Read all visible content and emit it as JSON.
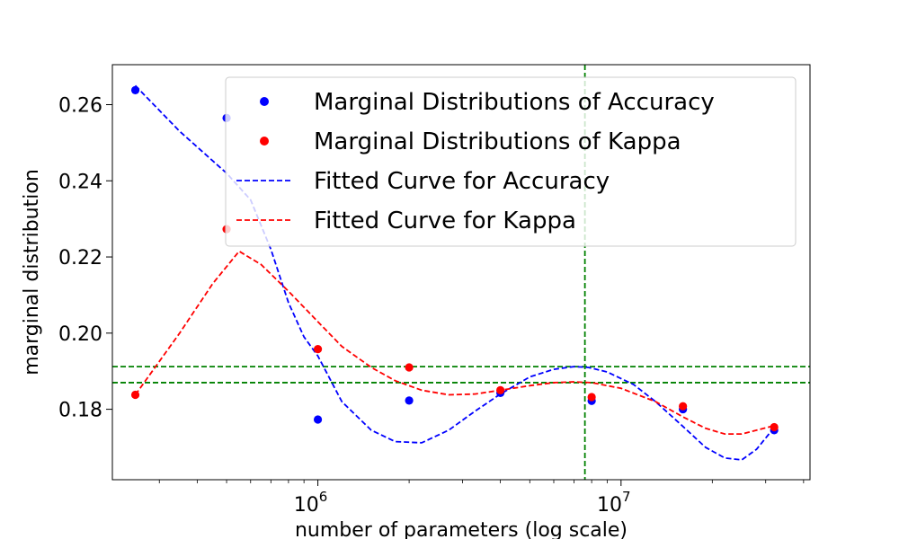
{
  "chart_data": {
    "type": "scatter",
    "xlabel": "number of parameters (log scale)",
    "ylabel": "marginal distribution",
    "x_scale": "log",
    "xlim": [
      210000,
      42000000
    ],
    "ylim": [
      0.1615,
      0.2705
    ],
    "x_ticks": [
      {
        "value": 1000000,
        "base": "10",
        "exp": "6"
      },
      {
        "value": 10000000,
        "base": "10",
        "exp": "7"
      }
    ],
    "y_ticks": [
      {
        "value": 0.18,
        "label": "0.18"
      },
      {
        "value": 0.2,
        "label": "0.20"
      },
      {
        "value": 0.22,
        "label": "0.22"
      },
      {
        "value": 0.24,
        "label": "0.24"
      },
      {
        "value": 0.26,
        "label": "0.26"
      }
    ],
    "grid": false,
    "legend_position": "upper-right",
    "series": [
      {
        "name": "Marginal Distributions of Accuracy",
        "kind": "scatter",
        "color": "#0000ff",
        "x": [
          250000,
          500000,
          1000000,
          2000000,
          4000000,
          8000000,
          16000000,
          32000000
        ],
        "y": [
          0.2638,
          0.2565,
          0.1773,
          0.1823,
          0.1843,
          0.1822,
          0.18,
          0.1745
        ]
      },
      {
        "name": "Marginal Distributions of Kappa",
        "kind": "scatter",
        "color": "#ff0000",
        "x": [
          250000,
          500000,
          1000000,
          2000000,
          4000000,
          8000000,
          16000000,
          32000000
        ],
        "y": [
          0.1838,
          0.2273,
          0.1958,
          0.191,
          0.185,
          0.1832,
          0.1808,
          0.1753
        ]
      },
      {
        "name": "Fitted Curve for Accuracy",
        "kind": "line",
        "style": "dashed",
        "color": "#0000ff",
        "x": [
          250000,
          350000,
          500000,
          600000,
          700000,
          800000,
          900000,
          1000000,
          1200000,
          1500000,
          1800000,
          2200000,
          2700000,
          3300000,
          4000000,
          5000000,
          6000000,
          7000000,
          7800000,
          9000000,
          11000000,
          13000000,
          16000000,
          19000000,
          22000000,
          25000000,
          28000000,
          32000000
        ],
        "y": [
          0.265,
          0.253,
          0.242,
          0.235,
          0.222,
          0.208,
          0.199,
          0.194,
          0.182,
          0.1745,
          0.1715,
          0.1712,
          0.1745,
          0.1795,
          0.184,
          0.1885,
          0.1905,
          0.1912,
          0.191,
          0.1898,
          0.1865,
          0.182,
          0.1755,
          0.17,
          0.1672,
          0.1667,
          0.1695,
          0.1752
        ]
      },
      {
        "name": "Fitted Curve for Kappa",
        "kind": "line",
        "style": "dashed",
        "color": "#ff0000",
        "x": [
          250000,
          350000,
          450000,
          550000,
          650000,
          800000,
          1000000,
          1200000,
          1500000,
          1800000,
          2200000,
          2700000,
          3300000,
          4000000,
          5000000,
          6000000,
          7000000,
          8000000,
          10000000,
          13000000,
          16000000,
          19000000,
          22000000,
          25000000,
          28000000,
          32000000
        ],
        "y": [
          0.1838,
          0.2,
          0.213,
          0.2215,
          0.218,
          0.211,
          0.203,
          0.1965,
          0.191,
          0.1875,
          0.185,
          0.1838,
          0.184,
          0.185,
          0.1862,
          0.187,
          0.1872,
          0.187,
          0.1855,
          0.182,
          0.178,
          0.175,
          0.1735,
          0.1735,
          0.1745,
          0.1757
        ]
      }
    ],
    "reference_lines": {
      "color": "#008000",
      "horizontal": [
        0.1912,
        0.187
      ],
      "vertical": [
        7600000
      ]
    }
  }
}
